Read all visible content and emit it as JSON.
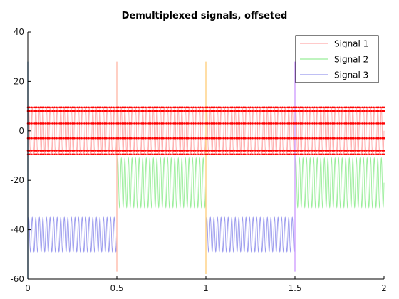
{
  "chart_data": {
    "type": "line",
    "title": "Demultiplexed signals, offseted",
    "xlabel": "",
    "ylabel": "",
    "xlim": [
      0,
      2
    ],
    "ylim": [
      -60,
      40
    ],
    "x_ticks": [
      0,
      0.5,
      1,
      1.5,
      2
    ],
    "x_tick_labels": [
      "0",
      "0.5",
      "1",
      "1.5",
      "2"
    ],
    "y_ticks": [
      -60,
      -40,
      -20,
      0,
      20,
      40
    ],
    "y_tick_labels": [
      "-60",
      "-40",
      "-20",
      "0",
      "20",
      "40"
    ],
    "grid": false,
    "legend_position": "top-right",
    "legend": [
      "Signal 1",
      "Signal 2",
      "Signal 3"
    ],
    "series": [
      {
        "name": "Signal 1",
        "color": "#ffaaaa",
        "offset": 0,
        "amplitude": 9.5,
        "cycles_per_unit": 50,
        "segments": [
          [
            0,
            0.5
          ],
          [
            0.5,
            1.0
          ],
          [
            1.0,
            1.5
          ],
          [
            1.5,
            2.0
          ]
        ]
      },
      {
        "name": "Signal 2",
        "color": "#99ee99",
        "offset": -21,
        "amplitude": 10,
        "cycles_per_unit": 50,
        "segments": [
          [
            0.5,
            1.0
          ],
          [
            1.5,
            2.0
          ]
        ]
      },
      {
        "name": "Signal 3",
        "color": "#9999ee",
        "offset": -42,
        "amplitude": 7,
        "cycles_per_unit": 50,
        "segments": [
          [
            0,
            0.5
          ],
          [
            1.0,
            1.5
          ]
        ]
      }
    ],
    "sample_markers": {
      "color": "#ff0000",
      "levels": [
        9.5,
        8,
        3,
        -3,
        -8,
        -9.5
      ],
      "count_per_unit": 100,
      "xlim": [
        0,
        2
      ]
    },
    "spikes": [
      {
        "x": 0,
        "y_range": [
          -60,
          28
        ],
        "color": "#5599cc"
      },
      {
        "x": 0.5,
        "y_range": [
          -57,
          28
        ],
        "color": "#ffbbaa"
      },
      {
        "x": 1.0,
        "y_range": [
          -58,
          28
        ],
        "color": "#ffd080"
      },
      {
        "x": 1.5,
        "y_range": [
          -57,
          28
        ],
        "color": "#d0a0ff"
      }
    ]
  }
}
